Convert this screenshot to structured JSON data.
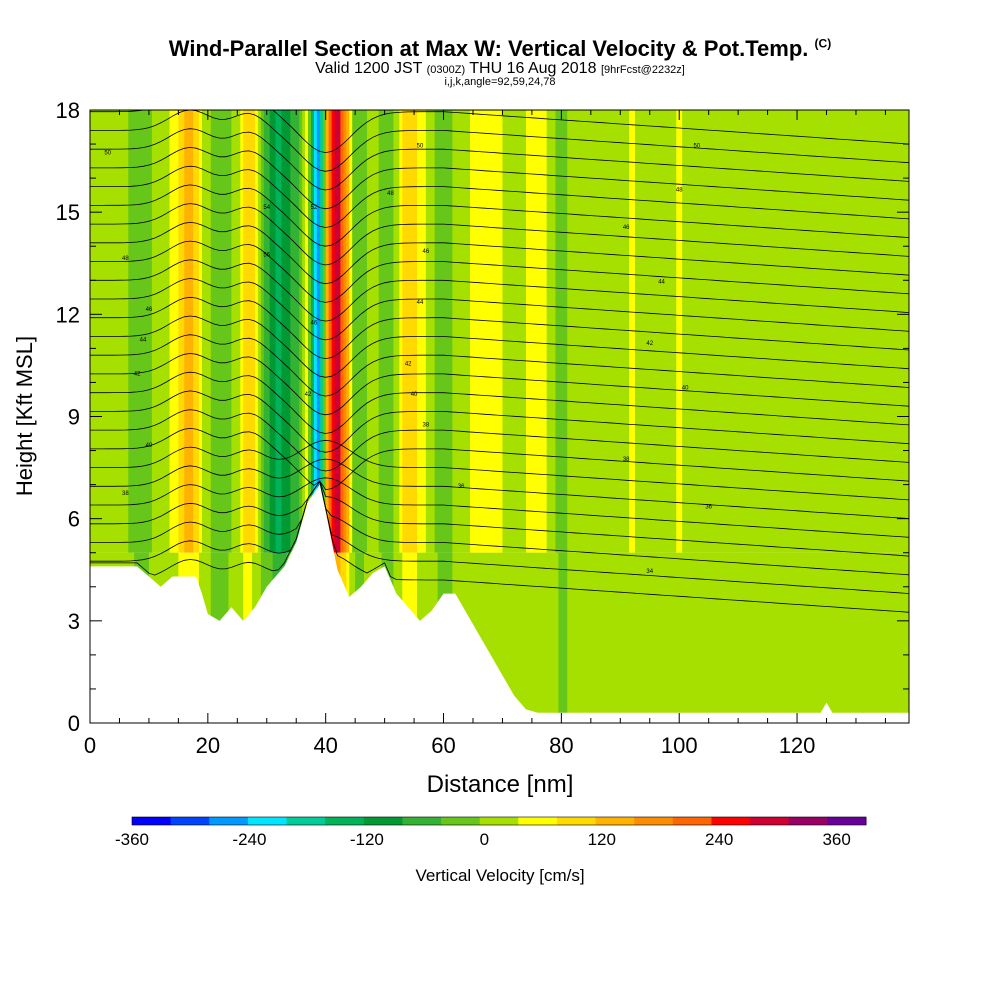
{
  "title": {
    "main": "Wind-Parallel Section at Max W: Vertical Velocity & Pot.Temp.",
    "copyright": "(C)",
    "valid_prefix": "Valid 1200 JST",
    "valid_zulu": "(0300Z)",
    "valid_date": "THU 16 Aug 2018",
    "forecast": "[9hrFcst@2232z]",
    "indices": "i,j,k,angle=92,59,24,78"
  },
  "chart_data": {
    "type": "heatmap",
    "xlabel": "Distance [nm]",
    "ylabel": "Height [Kft MSL]",
    "xlim": [
      0,
      139
    ],
    "ylim": [
      0,
      18
    ],
    "x_ticks": [
      0,
      20,
      40,
      60,
      80,
      100,
      120
    ],
    "y_ticks": [
      0,
      3,
      6,
      9,
      12,
      15,
      18
    ],
    "colorbar": {
      "label": "Vertical Velocity [cm/s]",
      "range": [
        -360,
        390
      ],
      "tick_values": [
        -360,
        -240,
        -120,
        0,
        120,
        240,
        360
      ],
      "colors": [
        "#0000ff",
        "#0044ff",
        "#0099ff",
        "#00e5ff",
        "#00cc99",
        "#00b359",
        "#009933",
        "#33b233",
        "#66c61a",
        "#a6e000",
        "#ffff00",
        "#ffd900",
        "#ffb300",
        "#ff8c00",
        "#ff6600",
        "#ff0000",
        "#cc0033",
        "#990066",
        "#660099"
      ]
    },
    "terrain_kft": [
      [
        0,
        4.6
      ],
      [
        6,
        4.6
      ],
      [
        8,
        4.6
      ],
      [
        10,
        4.3
      ],
      [
        12,
        4.0
      ],
      [
        14,
        4.3
      ],
      [
        18,
        4.3
      ],
      [
        19,
        3.8
      ],
      [
        20,
        3.2
      ],
      [
        22,
        3.0
      ],
      [
        24,
        3.4
      ],
      [
        26,
        3.0
      ],
      [
        28,
        3.4
      ],
      [
        30,
        4.0
      ],
      [
        33,
        4.6
      ],
      [
        35,
        5.3
      ],
      [
        37,
        6.5
      ],
      [
        39,
        7.0
      ],
      [
        40,
        6.2
      ],
      [
        42,
        4.5
      ],
      [
        44,
        3.7
      ],
      [
        46,
        4.0
      ],
      [
        48,
        4.4
      ],
      [
        50,
        4.6
      ],
      [
        52,
        3.8
      ],
      [
        54,
        3.4
      ],
      [
        56,
        3.0
      ],
      [
        58,
        3.3
      ],
      [
        60,
        3.8
      ],
      [
        62,
        3.8
      ],
      [
        64,
        3.2
      ],
      [
        66,
        2.6
      ],
      [
        68,
        2.0
      ],
      [
        70,
        1.4
      ],
      [
        72,
        0.8
      ],
      [
        74,
        0.4
      ],
      [
        76,
        0.3
      ],
      [
        78,
        0.3
      ],
      [
        124,
        0.3
      ],
      [
        125,
        0.6
      ],
      [
        126,
        0.3
      ],
      [
        139,
        0.3
      ]
    ],
    "columns": [
      {
        "x": 0,
        "w": 10
      },
      {
        "x": 4,
        "w": 10
      },
      {
        "x": 9,
        "w": -20
      },
      {
        "x": 11,
        "w": 0
      },
      {
        "x": 14,
        "w": 40
      },
      {
        "x": 17,
        "w": 160
      },
      {
        "x": 19,
        "w": 30
      },
      {
        "x": 22,
        "w": -40
      },
      {
        "x": 25,
        "w": 20
      },
      {
        "x": 27,
        "w": 120
      },
      {
        "x": 30,
        "w": -60
      },
      {
        "x": 32,
        "w": -140
      },
      {
        "x": 35,
        "w": -60
      },
      {
        "x": 37,
        "w": 60
      },
      {
        "x": 38,
        "w": -200
      },
      {
        "x": 39,
        "w": -260
      },
      {
        "x": 40.5,
        "w": 200
      },
      {
        "x": 42,
        "w": 300
      },
      {
        "x": 43.5,
        "w": 160
      },
      {
        "x": 45,
        "w": -40
      },
      {
        "x": 48,
        "w": 20
      },
      {
        "x": 51,
        "w": -40
      },
      {
        "x": 54,
        "w": 120
      },
      {
        "x": 57,
        "w": 30
      },
      {
        "x": 60,
        "w": -30
      },
      {
        "x": 64,
        "w": 30
      },
      {
        "x": 68,
        "w": 60
      },
      {
        "x": 72,
        "w": 10
      },
      {
        "x": 76,
        "w": 60
      },
      {
        "x": 80,
        "w": -20
      },
      {
        "x": 84,
        "w": 30
      },
      {
        "x": 88,
        "w": 10
      },
      {
        "x": 92,
        "w": 40
      },
      {
        "x": 96,
        "w": 10
      },
      {
        "x": 100,
        "w": 40
      },
      {
        "x": 104,
        "w": 10
      },
      {
        "x": 108,
        "w": 30
      },
      {
        "x": 112,
        "w": 10
      },
      {
        "x": 116,
        "w": 30
      },
      {
        "x": 120,
        "w": 10
      },
      {
        "x": 124,
        "w": 30
      },
      {
        "x": 128,
        "w": 10
      },
      {
        "x": 132,
        "w": 20
      },
      {
        "x": 136,
        "w": 10
      },
      {
        "x": 139,
        "w": 20
      }
    ],
    "theta_labels": [
      {
        "x": 3,
        "y": 16.7,
        "text": "50"
      },
      {
        "x": 6,
        "y": 13.6,
        "text": "48"
      },
      {
        "x": 10,
        "y": 12.1,
        "text": "46"
      },
      {
        "x": 9,
        "y": 11.2,
        "text": "44"
      },
      {
        "x": 8,
        "y": 10.2,
        "text": "42"
      },
      {
        "x": 10,
        "y": 8.1,
        "text": "40"
      },
      {
        "x": 6,
        "y": 6.7,
        "text": "38"
      },
      {
        "x": 56,
        "y": 16.9,
        "text": "50"
      },
      {
        "x": 51,
        "y": 15.5,
        "text": "48"
      },
      {
        "x": 57,
        "y": 13.8,
        "text": "46"
      },
      {
        "x": 56,
        "y": 12.3,
        "text": "44"
      },
      {
        "x": 54,
        "y": 10.5,
        "text": "42"
      },
      {
        "x": 55,
        "y": 9.6,
        "text": "40"
      },
      {
        "x": 57,
        "y": 8.7,
        "text": "38"
      },
      {
        "x": 63,
        "y": 6.9,
        "text": "36"
      },
      {
        "x": 103,
        "y": 16.9,
        "text": "50"
      },
      {
        "x": 100,
        "y": 15.6,
        "text": "48"
      },
      {
        "x": 91,
        "y": 14.5,
        "text": "46"
      },
      {
        "x": 97,
        "y": 12.9,
        "text": "44"
      },
      {
        "x": 95,
        "y": 11.1,
        "text": "42"
      },
      {
        "x": 101,
        "y": 9.8,
        "text": "40"
      },
      {
        "x": 91,
        "y": 7.7,
        "text": "38"
      },
      {
        "x": 105,
        "y": 6.3,
        "text": "36"
      },
      {
        "x": 95,
        "y": 4.4,
        "text": "34"
      },
      {
        "x": 30,
        "y": 15.1,
        "text": "54"
      },
      {
        "x": 30,
        "y": 13.7,
        "text": "56"
      },
      {
        "x": 38,
        "y": 15.1,
        "text": "52"
      },
      {
        "x": 38,
        "y": 11.7,
        "text": "46"
      },
      {
        "x": 37,
        "y": 9.6,
        "text": "42"
      }
    ]
  }
}
